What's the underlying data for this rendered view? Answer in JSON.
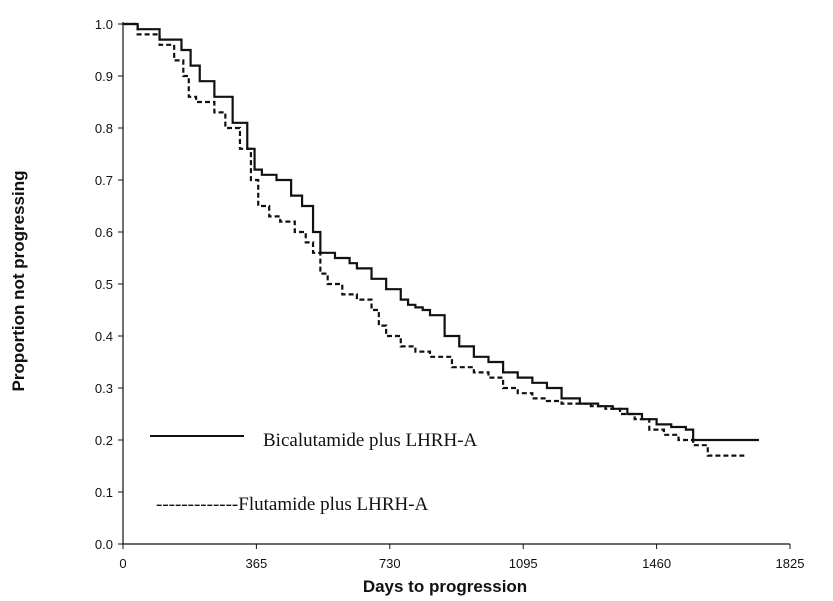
{
  "chart_data": {
    "type": "line",
    "title": "",
    "xlabel": "Days to progression",
    "ylabel": "Proportion not progressing",
    "xlim": [
      0,
      1825
    ],
    "ylim": [
      0.0,
      1.0
    ],
    "x_ticks": [
      "0",
      "365",
      "730",
      "1095",
      "1460",
      "1825"
    ],
    "y_ticks": [
      "0.0",
      "0.1",
      "0.2",
      "0.3",
      "0.4",
      "0.5",
      "0.6",
      "0.7",
      "0.8",
      "0.9",
      "1.0"
    ],
    "grid": false,
    "legend": {
      "placement": "bottom-left",
      "entries": [
        {
          "label": "Bicalutamide plus LHRH-A",
          "dash_prefix": ""
        },
        {
          "label": "Flutamide plus LHRH-A",
          "dash_prefix": "-------------"
        }
      ]
    },
    "series": [
      {
        "name": "Bicalutamide plus LHRH-A",
        "style": "solid",
        "color": "#111111",
        "x": [
          0,
          40,
          100,
          160,
          185,
          210,
          250,
          300,
          340,
          360,
          380,
          420,
          460,
          490,
          520,
          540,
          580,
          620,
          640,
          680,
          720,
          760,
          780,
          800,
          820,
          840,
          880,
          920,
          960,
          1000,
          1040,
          1080,
          1120,
          1160,
          1200,
          1250,
          1300,
          1340,
          1380,
          1420,
          1460,
          1500,
          1540,
          1560,
          1600,
          1640,
          1700,
          1740
        ],
        "y": [
          1.0,
          0.99,
          0.97,
          0.95,
          0.92,
          0.89,
          0.86,
          0.81,
          0.76,
          0.72,
          0.71,
          0.7,
          0.67,
          0.65,
          0.6,
          0.56,
          0.55,
          0.54,
          0.53,
          0.51,
          0.49,
          0.47,
          0.46,
          0.455,
          0.45,
          0.44,
          0.4,
          0.38,
          0.36,
          0.35,
          0.33,
          0.32,
          0.31,
          0.3,
          0.28,
          0.27,
          0.265,
          0.26,
          0.25,
          0.24,
          0.23,
          0.225,
          0.22,
          0.2,
          0.2,
          0.2,
          0.2,
          0.2
        ]
      },
      {
        "name": "Flutamide plus LHRH-A",
        "style": "dashed",
        "color": "#111111",
        "x": [
          0,
          40,
          100,
          140,
          165,
          180,
          200,
          230,
          250,
          280,
          320,
          350,
          370,
          400,
          430,
          470,
          500,
          520,
          540,
          560,
          600,
          640,
          680,
          700,
          720,
          760,
          800,
          840,
          870,
          900,
          960,
          1000,
          1040,
          1080,
          1120,
          1160,
          1200,
          1240,
          1280,
          1320,
          1360,
          1400,
          1440,
          1480,
          1520,
          1560,
          1600,
          1700
        ],
        "y": [
          1.0,
          0.98,
          0.96,
          0.93,
          0.9,
          0.86,
          0.85,
          0.85,
          0.83,
          0.8,
          0.76,
          0.7,
          0.65,
          0.63,
          0.62,
          0.6,
          0.58,
          0.56,
          0.52,
          0.5,
          0.48,
          0.47,
          0.45,
          0.42,
          0.4,
          0.38,
          0.37,
          0.36,
          0.36,
          0.34,
          0.33,
          0.32,
          0.3,
          0.29,
          0.28,
          0.275,
          0.27,
          0.27,
          0.265,
          0.26,
          0.25,
          0.24,
          0.22,
          0.21,
          0.2,
          0.19,
          0.17,
          0.17
        ]
      }
    ]
  }
}
